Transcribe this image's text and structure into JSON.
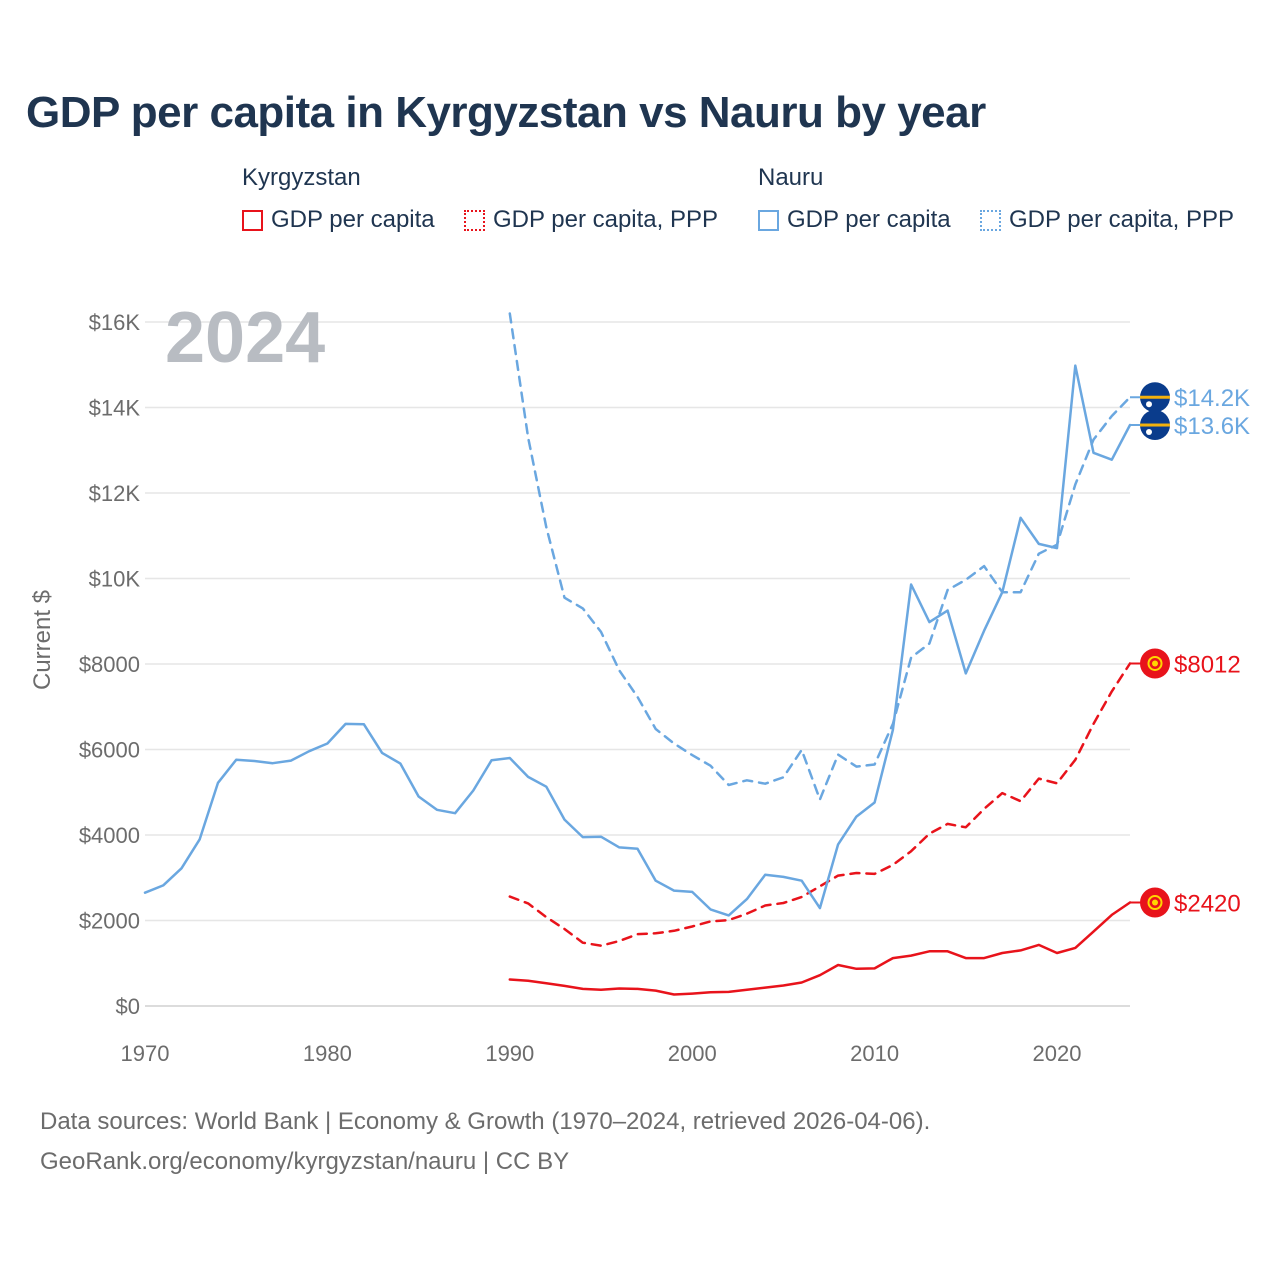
{
  "chart_data": {
    "type": "line",
    "title": "GDP per capita in Kyrgyzstan vs Nauru by year",
    "ylabel": "Current $",
    "xlabel": "",
    "year_label": "2024",
    "x_range": [
      1970,
      2024
    ],
    "ylim": [
      0,
      16000
    ],
    "x_ticks": [
      {
        "value": 1970,
        "label": "1970"
      },
      {
        "value": 1980,
        "label": "1980"
      },
      {
        "value": 1990,
        "label": "1990"
      },
      {
        "value": 2000,
        "label": "2000"
      },
      {
        "value": 2010,
        "label": "2010"
      },
      {
        "value": 2020,
        "label": "2020"
      }
    ],
    "y_ticks": [
      {
        "value": 0,
        "label": "$0"
      },
      {
        "value": 2000,
        "label": "$2000"
      },
      {
        "value": 4000,
        "label": "$4000"
      },
      {
        "value": 6000,
        "label": "$6000"
      },
      {
        "value": 8000,
        "label": "$8000"
      },
      {
        "value": 10000,
        "label": "$10K"
      },
      {
        "value": 12000,
        "label": "$12K"
      },
      {
        "value": 14000,
        "label": "$14K"
      },
      {
        "value": 16000,
        "label": "$16K"
      }
    ],
    "legend_groups": [
      {
        "country": "Kyrgyzstan",
        "color": "#e8131b",
        "items": [
          {
            "label": "GDP per capita",
            "style": "solid"
          },
          {
            "label": "GDP per capita, PPP",
            "style": "dotted"
          }
        ]
      },
      {
        "country": "Nauru",
        "color": "#6aa7e0",
        "items": [
          {
            "label": "GDP per capita",
            "style": "solid"
          },
          {
            "label": "GDP per capita, PPP",
            "style": "dotted"
          }
        ]
      }
    ],
    "series": [
      {
        "name": "Kyrgyzstan GDP per capita",
        "color": "#e8131b",
        "dash": false,
        "end_label": "$2420",
        "marker": "kyrgyzstan-flag",
        "points": [
          [
            1990,
            620
          ],
          [
            1991,
            590
          ],
          [
            1992,
            530
          ],
          [
            1993,
            470
          ],
          [
            1994,
            400
          ],
          [
            1995,
            380
          ],
          [
            1996,
            410
          ],
          [
            1997,
            400
          ],
          [
            1998,
            360
          ],
          [
            1999,
            270
          ],
          [
            2000,
            290
          ],
          [
            2001,
            320
          ],
          [
            2002,
            330
          ],
          [
            2003,
            380
          ],
          [
            2004,
            430
          ],
          [
            2005,
            480
          ],
          [
            2006,
            550
          ],
          [
            2007,
            720
          ],
          [
            2008,
            960
          ],
          [
            2009,
            870
          ],
          [
            2010,
            880
          ],
          [
            2011,
            1120
          ],
          [
            2012,
            1180
          ],
          [
            2013,
            1280
          ],
          [
            2014,
            1280
          ],
          [
            2015,
            1120
          ],
          [
            2016,
            1120
          ],
          [
            2017,
            1240
          ],
          [
            2018,
            1300
          ],
          [
            2019,
            1430
          ],
          [
            2020,
            1240
          ],
          [
            2021,
            1360
          ],
          [
            2022,
            1740
          ],
          [
            2023,
            2130
          ],
          [
            2024,
            2420
          ]
        ]
      },
      {
        "name": "Kyrgyzstan GDP per capita, PPP",
        "color": "#e8131b",
        "dash": true,
        "end_label": "$8012",
        "marker": "kyrgyzstan-flag",
        "points": [
          [
            1990,
            2560
          ],
          [
            1991,
            2400
          ],
          [
            1992,
            2080
          ],
          [
            1993,
            1800
          ],
          [
            1994,
            1480
          ],
          [
            1995,
            1410
          ],
          [
            1996,
            1520
          ],
          [
            1997,
            1680
          ],
          [
            1998,
            1700
          ],
          [
            1999,
            1760
          ],
          [
            2000,
            1860
          ],
          [
            2001,
            1980
          ],
          [
            2002,
            2010
          ],
          [
            2003,
            2160
          ],
          [
            2004,
            2350
          ],
          [
            2005,
            2410
          ],
          [
            2006,
            2550
          ],
          [
            2007,
            2800
          ],
          [
            2008,
            3050
          ],
          [
            2009,
            3110
          ],
          [
            2010,
            3090
          ],
          [
            2011,
            3300
          ],
          [
            2012,
            3620
          ],
          [
            2013,
            4030
          ],
          [
            2014,
            4260
          ],
          [
            2015,
            4180
          ],
          [
            2016,
            4610
          ],
          [
            2017,
            4980
          ],
          [
            2018,
            4790
          ],
          [
            2019,
            5320
          ],
          [
            2020,
            5210
          ],
          [
            2021,
            5760
          ],
          [
            2022,
            6600
          ],
          [
            2023,
            7360
          ],
          [
            2024,
            8012
          ]
        ]
      },
      {
        "name": "Nauru GDP per capita",
        "color": "#6aa7e0",
        "dash": false,
        "end_label": "$13.6K",
        "marker": "nauru-flag",
        "points": [
          [
            1970,
            2650
          ],
          [
            1971,
            2820
          ],
          [
            1972,
            3220
          ],
          [
            1973,
            3900
          ],
          [
            1974,
            5220
          ],
          [
            1975,
            5760
          ],
          [
            1976,
            5730
          ],
          [
            1977,
            5680
          ],
          [
            1978,
            5740
          ],
          [
            1979,
            5960
          ],
          [
            1980,
            6140
          ],
          [
            1981,
            6600
          ],
          [
            1982,
            6590
          ],
          [
            1983,
            5920
          ],
          [
            1984,
            5670
          ],
          [
            1985,
            4900
          ],
          [
            1986,
            4590
          ],
          [
            1987,
            4510
          ],
          [
            1988,
            5040
          ],
          [
            1989,
            5750
          ],
          [
            1990,
            5800
          ],
          [
            1991,
            5360
          ],
          [
            1992,
            5130
          ],
          [
            1993,
            4360
          ],
          [
            1994,
            3950
          ],
          [
            1995,
            3960
          ],
          [
            1996,
            3710
          ],
          [
            1997,
            3680
          ],
          [
            1998,
            2930
          ],
          [
            1999,
            2700
          ],
          [
            2000,
            2670
          ],
          [
            2001,
            2260
          ],
          [
            2002,
            2120
          ],
          [
            2003,
            2500
          ],
          [
            2004,
            3070
          ],
          [
            2005,
            3020
          ],
          [
            2006,
            2930
          ],
          [
            2007,
            2290
          ],
          [
            2008,
            3780
          ],
          [
            2009,
            4430
          ],
          [
            2010,
            4760
          ],
          [
            2011,
            6460
          ],
          [
            2012,
            9860
          ],
          [
            2013,
            8980
          ],
          [
            2014,
            9250
          ],
          [
            2015,
            7780
          ],
          [
            2016,
            8780
          ],
          [
            2017,
            9680
          ],
          [
            2018,
            11420
          ],
          [
            2019,
            10810
          ],
          [
            2020,
            10710
          ],
          [
            2021,
            14980
          ],
          [
            2022,
            12940
          ],
          [
            2023,
            12780
          ],
          [
            2024,
            13590
          ]
        ]
      },
      {
        "name": "Nauru GDP per capita, PPP",
        "color": "#6aa7e0",
        "dash": true,
        "end_label": "$14.2K",
        "marker": "nauru-flag",
        "points": [
          [
            1990,
            16200
          ],
          [
            1991,
            13300
          ],
          [
            1992,
            11200
          ],
          [
            1993,
            9550
          ],
          [
            1994,
            9300
          ],
          [
            1995,
            8750
          ],
          [
            1996,
            7850
          ],
          [
            1997,
            7230
          ],
          [
            1998,
            6480
          ],
          [
            1999,
            6140
          ],
          [
            2000,
            5870
          ],
          [
            2001,
            5620
          ],
          [
            2002,
            5170
          ],
          [
            2003,
            5280
          ],
          [
            2004,
            5200
          ],
          [
            2005,
            5350
          ],
          [
            2006,
            5990
          ],
          [
            2007,
            4830
          ],
          [
            2008,
            5880
          ],
          [
            2009,
            5600
          ],
          [
            2010,
            5650
          ],
          [
            2011,
            6600
          ],
          [
            2012,
            8150
          ],
          [
            2013,
            8480
          ],
          [
            2014,
            9730
          ],
          [
            2015,
            9970
          ],
          [
            2016,
            10290
          ],
          [
            2017,
            9680
          ],
          [
            2018,
            9680
          ],
          [
            2019,
            10580
          ],
          [
            2020,
            10790
          ],
          [
            2021,
            12200
          ],
          [
            2022,
            13250
          ],
          [
            2023,
            13800
          ],
          [
            2024,
            14240
          ]
        ]
      }
    ]
  },
  "footer": {
    "line1": "Data sources: World Bank | Economy & Growth (1970–2024, retrieved 2026-04-06).",
    "line2": "GeoRank.org/economy/kyrgyzstan/nauru | CC BY"
  }
}
